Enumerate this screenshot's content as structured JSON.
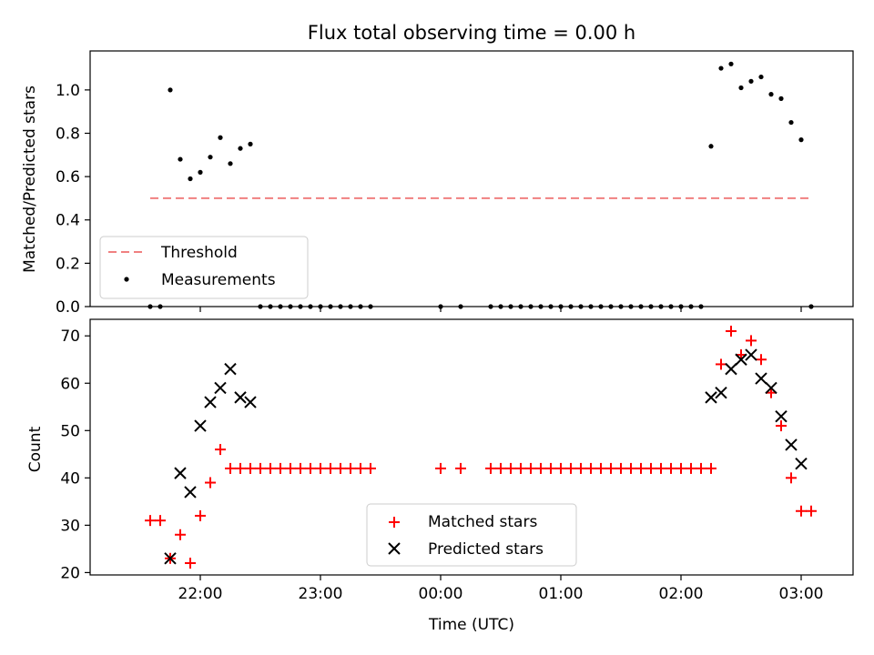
{
  "title": "Flux total observing time = 0.00 h",
  "xlabel": "Time (UTC)",
  "x_ticks": [
    "22:00",
    "23:00",
    "00:00",
    "01:00",
    "02:00",
    "03:00"
  ],
  "colors": {
    "threshold": "#f08080",
    "measurement": "#000000",
    "matched": "#ff0000",
    "predicted": "#000000"
  },
  "chart_data": [
    {
      "type": "scatter",
      "ylabel": "Matched/Predicted stars",
      "ylim": [
        0,
        1.18
      ],
      "y_ticks": [
        "0.0",
        "0.2",
        "0.4",
        "0.6",
        "0.8",
        "1.0"
      ],
      "legend_position": "lower-left",
      "legend": {
        "threshold": "Threshold",
        "measurements": "Measurements"
      },
      "threshold": {
        "value": 0.5,
        "x_start": "21:35",
        "x_end": "03:05",
        "line_style": "dashed"
      },
      "measurements": [
        {
          "x": "21:35",
          "y": 0.0
        },
        {
          "x": "21:40",
          "y": 0.0
        },
        {
          "x": "21:45",
          "y": 1.0
        },
        {
          "x": "21:50",
          "y": 0.68
        },
        {
          "x": "21:55",
          "y": 0.59
        },
        {
          "x": "22:00",
          "y": 0.62
        },
        {
          "x": "22:05",
          "y": 0.69
        },
        {
          "x": "22:10",
          "y": 0.78
        },
        {
          "x": "22:15",
          "y": 0.66
        },
        {
          "x": "22:20",
          "y": 0.73
        },
        {
          "x": "22:25",
          "y": 0.75
        },
        {
          "x": "22:30",
          "y": 0.0
        },
        {
          "x": "22:35",
          "y": 0.0
        },
        {
          "x": "22:40",
          "y": 0.0
        },
        {
          "x": "22:45",
          "y": 0.0
        },
        {
          "x": "22:50",
          "y": 0.0
        },
        {
          "x": "22:55",
          "y": 0.0
        },
        {
          "x": "23:00",
          "y": 0.0
        },
        {
          "x": "23:05",
          "y": 0.0
        },
        {
          "x": "23:10",
          "y": 0.0
        },
        {
          "x": "23:15",
          "y": 0.0
        },
        {
          "x": "23:20",
          "y": 0.0
        },
        {
          "x": "23:25",
          "y": 0.0
        },
        {
          "x": "00:00",
          "y": 0.0
        },
        {
          "x": "00:10",
          "y": 0.0
        },
        {
          "x": "00:25",
          "y": 0.0
        },
        {
          "x": "00:30",
          "y": 0.0
        },
        {
          "x": "00:35",
          "y": 0.0
        },
        {
          "x": "00:40",
          "y": 0.0
        },
        {
          "x": "00:45",
          "y": 0.0
        },
        {
          "x": "00:50",
          "y": 0.0
        },
        {
          "x": "00:55",
          "y": 0.0
        },
        {
          "x": "01:00",
          "y": 0.0
        },
        {
          "x": "01:05",
          "y": 0.0
        },
        {
          "x": "01:10",
          "y": 0.0
        },
        {
          "x": "01:15",
          "y": 0.0
        },
        {
          "x": "01:20",
          "y": 0.0
        },
        {
          "x": "01:25",
          "y": 0.0
        },
        {
          "x": "01:30",
          "y": 0.0
        },
        {
          "x": "01:35",
          "y": 0.0
        },
        {
          "x": "01:40",
          "y": 0.0
        },
        {
          "x": "01:45",
          "y": 0.0
        },
        {
          "x": "01:50",
          "y": 0.0
        },
        {
          "x": "01:55",
          "y": 0.0
        },
        {
          "x": "02:00",
          "y": 0.0
        },
        {
          "x": "02:05",
          "y": 0.0
        },
        {
          "x": "02:10",
          "y": 0.0
        },
        {
          "x": "02:15",
          "y": 0.74
        },
        {
          "x": "02:20",
          "y": 1.1
        },
        {
          "x": "02:25",
          "y": 1.12
        },
        {
          "x": "02:30",
          "y": 1.01
        },
        {
          "x": "02:35",
          "y": 1.04
        },
        {
          "x": "02:40",
          "y": 1.06
        },
        {
          "x": "02:45",
          "y": 0.98
        },
        {
          "x": "02:50",
          "y": 0.96
        },
        {
          "x": "02:55",
          "y": 0.85
        },
        {
          "x": "03:00",
          "y": 0.77
        },
        {
          "x": "03:05",
          "y": 0.0
        }
      ]
    },
    {
      "type": "scatter",
      "ylabel": "Count",
      "ylim": [
        19.5,
        73.5
      ],
      "y_ticks": [
        "20",
        "30",
        "40",
        "50",
        "60",
        "70"
      ],
      "legend_position": "lower-center",
      "legend": {
        "matched": "Matched stars",
        "predicted": "Predicted stars"
      },
      "matched": [
        {
          "x": "21:35",
          "y": 31
        },
        {
          "x": "21:40",
          "y": 31
        },
        {
          "x": "21:45",
          "y": 23
        },
        {
          "x": "21:50",
          "y": 28
        },
        {
          "x": "21:55",
          "y": 22
        },
        {
          "x": "22:00",
          "y": 32
        },
        {
          "x": "22:05",
          "y": 39
        },
        {
          "x": "22:10",
          "y": 46
        },
        {
          "x": "22:15",
          "y": 42
        },
        {
          "x": "22:20",
          "y": 42
        },
        {
          "x": "22:25",
          "y": 42
        },
        {
          "x": "22:30",
          "y": 42
        },
        {
          "x": "22:35",
          "y": 42
        },
        {
          "x": "22:40",
          "y": 42
        },
        {
          "x": "22:45",
          "y": 42
        },
        {
          "x": "22:50",
          "y": 42
        },
        {
          "x": "22:55",
          "y": 42
        },
        {
          "x": "23:00",
          "y": 42
        },
        {
          "x": "23:05",
          "y": 42
        },
        {
          "x": "23:10",
          "y": 42
        },
        {
          "x": "23:15",
          "y": 42
        },
        {
          "x": "23:20",
          "y": 42
        },
        {
          "x": "23:25",
          "y": 42
        },
        {
          "x": "00:00",
          "y": 42
        },
        {
          "x": "00:10",
          "y": 42
        },
        {
          "x": "00:25",
          "y": 42
        },
        {
          "x": "00:30",
          "y": 42
        },
        {
          "x": "00:35",
          "y": 42
        },
        {
          "x": "00:40",
          "y": 42
        },
        {
          "x": "00:45",
          "y": 42
        },
        {
          "x": "00:50",
          "y": 42
        },
        {
          "x": "00:55",
          "y": 42
        },
        {
          "x": "01:00",
          "y": 42
        },
        {
          "x": "01:05",
          "y": 42
        },
        {
          "x": "01:10",
          "y": 42
        },
        {
          "x": "01:15",
          "y": 42
        },
        {
          "x": "01:20",
          "y": 42
        },
        {
          "x": "01:25",
          "y": 42
        },
        {
          "x": "01:30",
          "y": 42
        },
        {
          "x": "01:35",
          "y": 42
        },
        {
          "x": "01:40",
          "y": 42
        },
        {
          "x": "01:45",
          "y": 42
        },
        {
          "x": "01:50",
          "y": 42
        },
        {
          "x": "01:55",
          "y": 42
        },
        {
          "x": "02:00",
          "y": 42
        },
        {
          "x": "02:05",
          "y": 42
        },
        {
          "x": "02:10",
          "y": 42
        },
        {
          "x": "02:15",
          "y": 42
        },
        {
          "x": "02:20",
          "y": 64
        },
        {
          "x": "02:25",
          "y": 71
        },
        {
          "x": "02:30",
          "y": 66
        },
        {
          "x": "02:35",
          "y": 69
        },
        {
          "x": "02:40",
          "y": 65
        },
        {
          "x": "02:45",
          "y": 58
        },
        {
          "x": "02:50",
          "y": 51
        },
        {
          "x": "02:55",
          "y": 40
        },
        {
          "x": "03:00",
          "y": 33
        },
        {
          "x": "03:05",
          "y": 33
        }
      ],
      "predicted": [
        {
          "x": "21:45",
          "y": 23
        },
        {
          "x": "21:50",
          "y": 41
        },
        {
          "x": "21:55",
          "y": 37
        },
        {
          "x": "22:00",
          "y": 51
        },
        {
          "x": "22:05",
          "y": 56
        },
        {
          "x": "22:10",
          "y": 59
        },
        {
          "x": "22:15",
          "y": 63
        },
        {
          "x": "22:20",
          "y": 57
        },
        {
          "x": "22:25",
          "y": 56
        },
        {
          "x": "02:15",
          "y": 57
        },
        {
          "x": "02:20",
          "y": 58
        },
        {
          "x": "02:25",
          "y": 63
        },
        {
          "x": "02:30",
          "y": 65
        },
        {
          "x": "02:35",
          "y": 66
        },
        {
          "x": "02:40",
          "y": 61
        },
        {
          "x": "02:45",
          "y": 59
        },
        {
          "x": "02:50",
          "y": 53
        },
        {
          "x": "02:55",
          "y": 47
        },
        {
          "x": "03:00",
          "y": 43
        }
      ]
    }
  ]
}
